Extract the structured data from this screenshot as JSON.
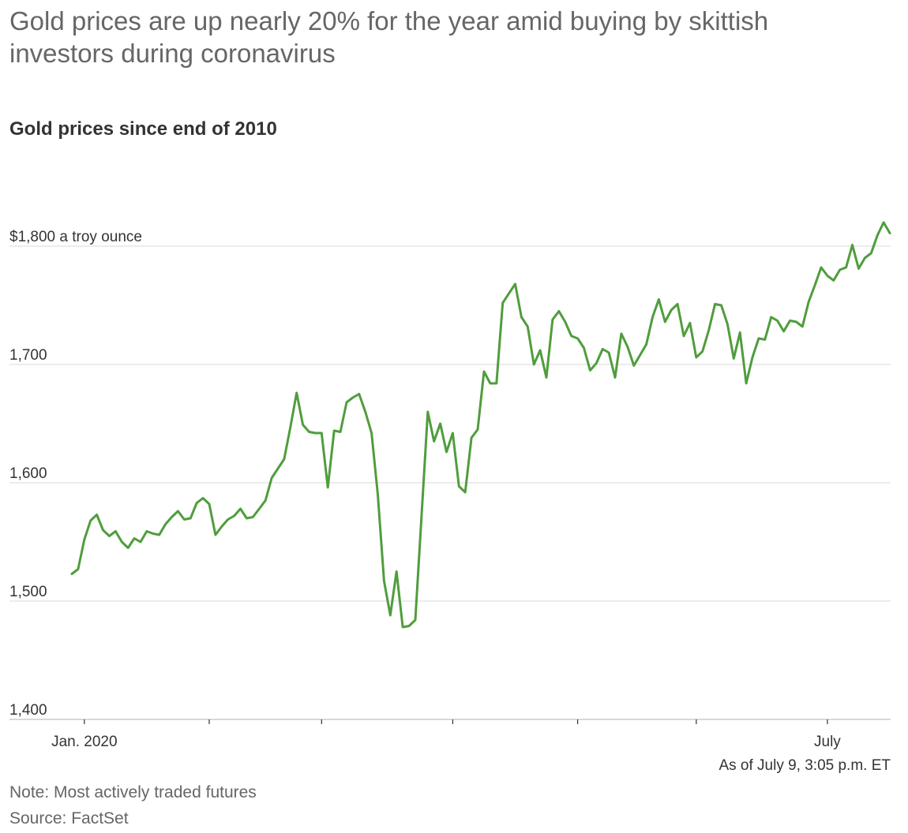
{
  "headline": "Gold prices are up nearly 20% for the year amid buying by skittish investors during coronavirus",
  "subhead": "Gold prices since end of 2010",
  "as_of": "As of July 9, 3:05 p.m. ET",
  "note": "Note: Most actively traded futures",
  "source": "Source: FactSet",
  "colors": {
    "line": "#4f9d3d",
    "grid": "#e0e0e0",
    "axis": "#cccccc",
    "text": "#333333",
    "muted": "#666666"
  },
  "chart_data": {
    "type": "line",
    "title": "Gold prices since end of 2010",
    "xlabel": "",
    "ylabel": "$1,800 a troy ounce",
    "ylim": [
      1400,
      1800
    ],
    "y_ticks": [
      {
        "value": 1800,
        "label": "$1,800 a troy ounce"
      },
      {
        "value": 1700,
        "label": "1,700"
      },
      {
        "value": 1600,
        "label": "1,600"
      },
      {
        "value": 1500,
        "label": "1,500"
      },
      {
        "value": 1400,
        "label": "1,400"
      }
    ],
    "x_ticks": [
      {
        "index": 2,
        "label": "Jan. 2020"
      },
      {
        "index": 22,
        "label": ""
      },
      {
        "index": 40,
        "label": ""
      },
      {
        "index": 61,
        "label": ""
      },
      {
        "index": 81,
        "label": ""
      },
      {
        "index": 100,
        "label": ""
      },
      {
        "index": 121,
        "label": "July"
      }
    ],
    "series": [
      {
        "name": "Gold price",
        "values": [
          1523,
          1527,
          1552,
          1568,
          1573,
          1560,
          1555,
          1559,
          1550,
          1545,
          1553,
          1550,
          1559,
          1557,
          1556,
          1565,
          1571,
          1576,
          1569,
          1570,
          1583,
          1587,
          1582,
          1556,
          1563,
          1569,
          1572,
          1578,
          1570,
          1571,
          1578,
          1585,
          1604,
          1612,
          1620,
          1647,
          1676,
          1649,
          1643,
          1642,
          1642,
          1596,
          1644,
          1643,
          1668,
          1672,
          1675,
          1660,
          1642,
          1590,
          1517,
          1488,
          1525,
          1478,
          1479,
          1484,
          1572,
          1660,
          1635,
          1650,
          1626,
          1642,
          1597,
          1592,
          1638,
          1645,
          1694,
          1684,
          1684,
          1752,
          1760,
          1768,
          1740,
          1732,
          1700,
          1712,
          1689,
          1738,
          1745,
          1736,
          1724,
          1722,
          1714,
          1695,
          1701,
          1713,
          1710,
          1689,
          1726,
          1715,
          1699,
          1708,
          1717,
          1740,
          1755,
          1736,
          1746,
          1751,
          1724,
          1735,
          1706,
          1711,
          1729,
          1751,
          1750,
          1734,
          1705,
          1727,
          1684,
          1706,
          1722,
          1721,
          1740,
          1737,
          1728,
          1737,
          1736,
          1732,
          1753,
          1767,
          1782,
          1775,
          1771,
          1780,
          1782,
          1801,
          1781,
          1790,
          1794,
          1809,
          1820,
          1811
        ]
      }
    ]
  }
}
